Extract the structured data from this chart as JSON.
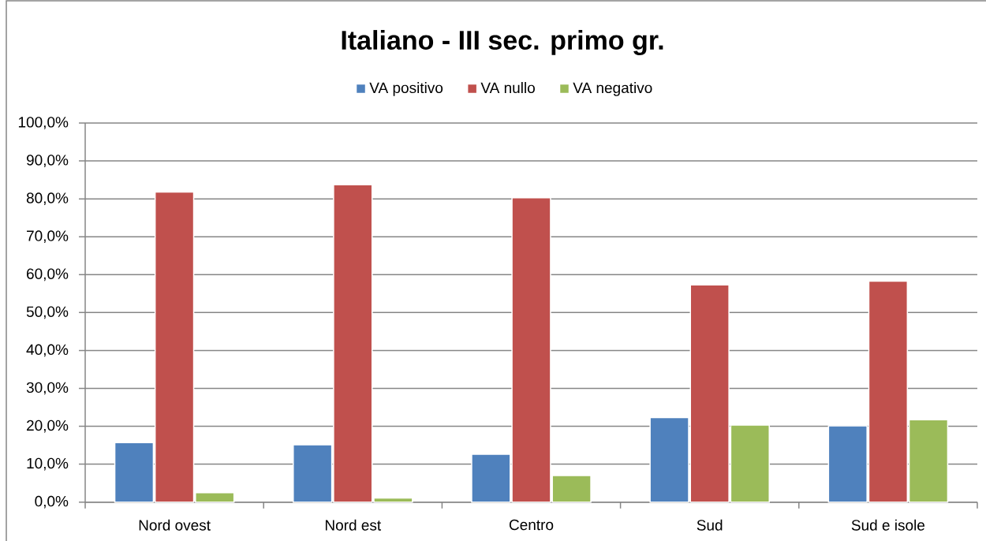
{
  "chart_data": {
    "type": "bar",
    "title": "Italiano - III sec. primo gr.",
    "categories": [
      "Nord ovest",
      "Nord est",
      "Centro",
      "Sud",
      "Sud e isole"
    ],
    "series": [
      {
        "name": "VA positivo",
        "color": "#4f81bd",
        "values": [
          15.7,
          15.1,
          12.6,
          22.3,
          20.1
        ]
      },
      {
        "name": "VA nullo",
        "color": "#c0504d",
        "values": [
          81.8,
          83.7,
          80.3,
          57.3,
          58.3
        ]
      },
      {
        "name": "VA negativo",
        "color": "#9bbb59",
        "values": [
          2.5,
          1.1,
          7.0,
          20.3,
          21.7
        ]
      }
    ],
    "ylim": [
      0,
      100
    ],
    "yticks": [
      {
        "value": 0,
        "label": "0,0%"
      },
      {
        "value": 10,
        "label": "10,0%"
      },
      {
        "value": 20,
        "label": "20,0%"
      },
      {
        "value": 30,
        "label": "30,0%"
      },
      {
        "value": 40,
        "label": "40,0%"
      },
      {
        "value": 50,
        "label": "50,0%"
      },
      {
        "value": 60,
        "label": "60,0%"
      },
      {
        "value": 70,
        "label": "70,0%"
      },
      {
        "value": 80,
        "label": "80,0%"
      },
      {
        "value": 90,
        "label": "90,0%"
      },
      {
        "value": 100,
        "label": "100,0%"
      }
    ],
    "grid": "y",
    "legend": "top"
  }
}
